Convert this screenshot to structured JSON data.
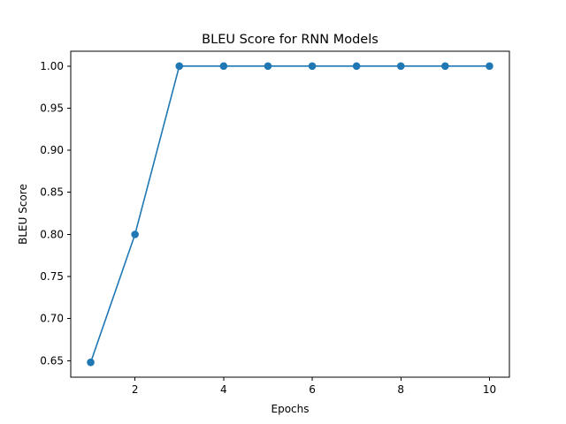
{
  "chart_data": {
    "type": "line",
    "title": "BLEU Score for RNN Models",
    "xlabel": "Epochs",
    "ylabel": "BLEU Score",
    "x": [
      1,
      2,
      3,
      4,
      5,
      6,
      7,
      8,
      9,
      10
    ],
    "series": [
      {
        "values": [
          0.648,
          0.8,
          1.0,
          1.0,
          1.0,
          1.0,
          1.0,
          1.0,
          1.0,
          1.0
        ],
        "color": "#1f77b4",
        "marker": "circle"
      }
    ],
    "xlim": [
      0.55,
      10.45
    ],
    "ylim": [
      0.6304,
      1.0176
    ],
    "xticks": [
      2,
      4,
      6,
      8,
      10
    ],
    "xtick_labels": [
      "2",
      "4",
      "6",
      "8",
      "10"
    ],
    "yticks": [
      0.65,
      0.7,
      0.75,
      0.8,
      0.85,
      0.9,
      0.95,
      1.0
    ],
    "ytick_labels": [
      "0.65",
      "0.70",
      "0.75",
      "0.80",
      "0.85",
      "0.90",
      "0.95",
      "1.00"
    ],
    "grid": false,
    "legend": "none"
  }
}
